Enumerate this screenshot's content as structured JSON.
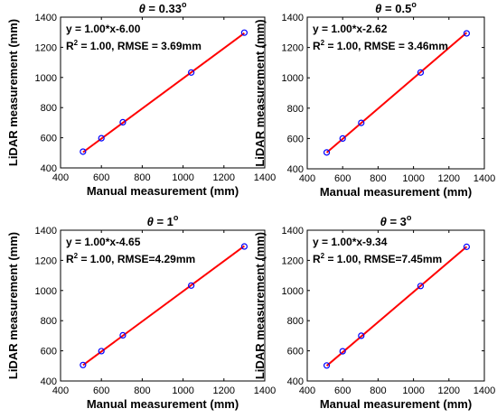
{
  "chart_data": [
    {
      "type": "scatter",
      "title": "θ = 0.33°",
      "title_theta": "θ",
      "title_value": "= 0.33",
      "title_degree": "o",
      "xlabel": "Manual measurement  (mm)",
      "ylabel": "LiDAR measurement  (mm)",
      "xlim": [
        400,
        1400
      ],
      "ylim": [
        400,
        1400
      ],
      "xticks": [
        400,
        600,
        800,
        1000,
        1200,
        1400
      ],
      "yticks": [
        400,
        600,
        800,
        1000,
        1200,
        1400
      ],
      "fit_text": "y = 1.00*x-6.00",
      "r2_prefix": "R",
      "r2_sup": "2",
      "r2_rest": " = 1.00,  RMSE = 3.69mm",
      "fit": {
        "slope": 1.0,
        "intercept": -6.0
      },
      "points": {
        "x": [
          510,
          600,
          705,
          1040,
          1300
        ],
        "y": [
          508,
          597,
          703,
          1033,
          1297
        ]
      },
      "grid": false,
      "marker_color": "#0000ff",
      "line_color": "#ff0000"
    },
    {
      "type": "scatter",
      "title": "θ = 0.5°",
      "title_theta": "θ",
      "title_value": "= 0.5",
      "title_degree": "o",
      "xlabel": "Manual measurement  (mm)",
      "ylabel": "LiDAR measurement  (mm)",
      "xlim": [
        400,
        1400
      ],
      "ylim": [
        400,
        1400
      ],
      "xticks": [
        400,
        600,
        800,
        1000,
        1200,
        1400
      ],
      "yticks": [
        400,
        600,
        800,
        1000,
        1200,
        1400
      ],
      "fit_text": "y = 1.00*x-2.62",
      "r2_prefix": "R",
      "r2_sup": "2",
      "r2_rest": " = 1.00,  RMSE = 3.46mm",
      "fit": {
        "slope": 1.0,
        "intercept": -2.62
      },
      "points": {
        "x": [
          510,
          600,
          705,
          1040,
          1300
        ],
        "y": [
          508,
          600,
          703,
          1035,
          1293
        ]
      },
      "grid": false,
      "marker_color": "#0000ff",
      "line_color": "#ff0000"
    },
    {
      "type": "scatter",
      "title": "θ = 1°",
      "title_theta": "θ",
      "title_value": "= 1",
      "title_degree": "o",
      "xlabel": "Manual measurement  (mm)",
      "ylabel": "LiDAR measurement  (mm)",
      "xlim": [
        400,
        1400
      ],
      "ylim": [
        400,
        1400
      ],
      "xticks": [
        400,
        600,
        800,
        1000,
        1200,
        1400
      ],
      "yticks": [
        400,
        600,
        800,
        1000,
        1200,
        1400
      ],
      "fit_text": "y = 1.00*x-4.65",
      "r2_prefix": "R",
      "r2_sup": "2",
      "r2_rest": " = 1.00,  RMSE=4.29mm",
      "fit": {
        "slope": 1.0,
        "intercept": -4.65
      },
      "points": {
        "x": [
          510,
          600,
          705,
          1040,
          1300
        ],
        "y": [
          506,
          598,
          703,
          1033,
          1292
        ]
      },
      "grid": false,
      "marker_color": "#0000ff",
      "line_color": "#ff0000"
    },
    {
      "type": "scatter",
      "title": "θ = 3°",
      "title_theta": "θ",
      "title_value": "= 3",
      "title_degree": "o",
      "xlabel": "Manual measurement  (mm)",
      "ylabel": "LiDAR measurement  (mm)",
      "xlim": [
        400,
        1400
      ],
      "ylim": [
        400,
        1400
      ],
      "xticks": [
        400,
        600,
        800,
        1000,
        1200,
        1400
      ],
      "yticks": [
        400,
        600,
        800,
        1000,
        1200,
        1400
      ],
      "fit_text": "y = 1.00*x-9.34",
      "r2_prefix": "R",
      "r2_sup": "2",
      "r2_rest": " = 1.00,  RMSE=7.45mm",
      "fit": {
        "slope": 1.0,
        "intercept": -9.34
      },
      "points": {
        "x": [
          510,
          600,
          705,
          1040,
          1300
        ],
        "y": [
          503,
          597,
          700,
          1030,
          1290
        ]
      },
      "grid": false,
      "marker_color": "#0000ff",
      "line_color": "#ff0000"
    }
  ]
}
